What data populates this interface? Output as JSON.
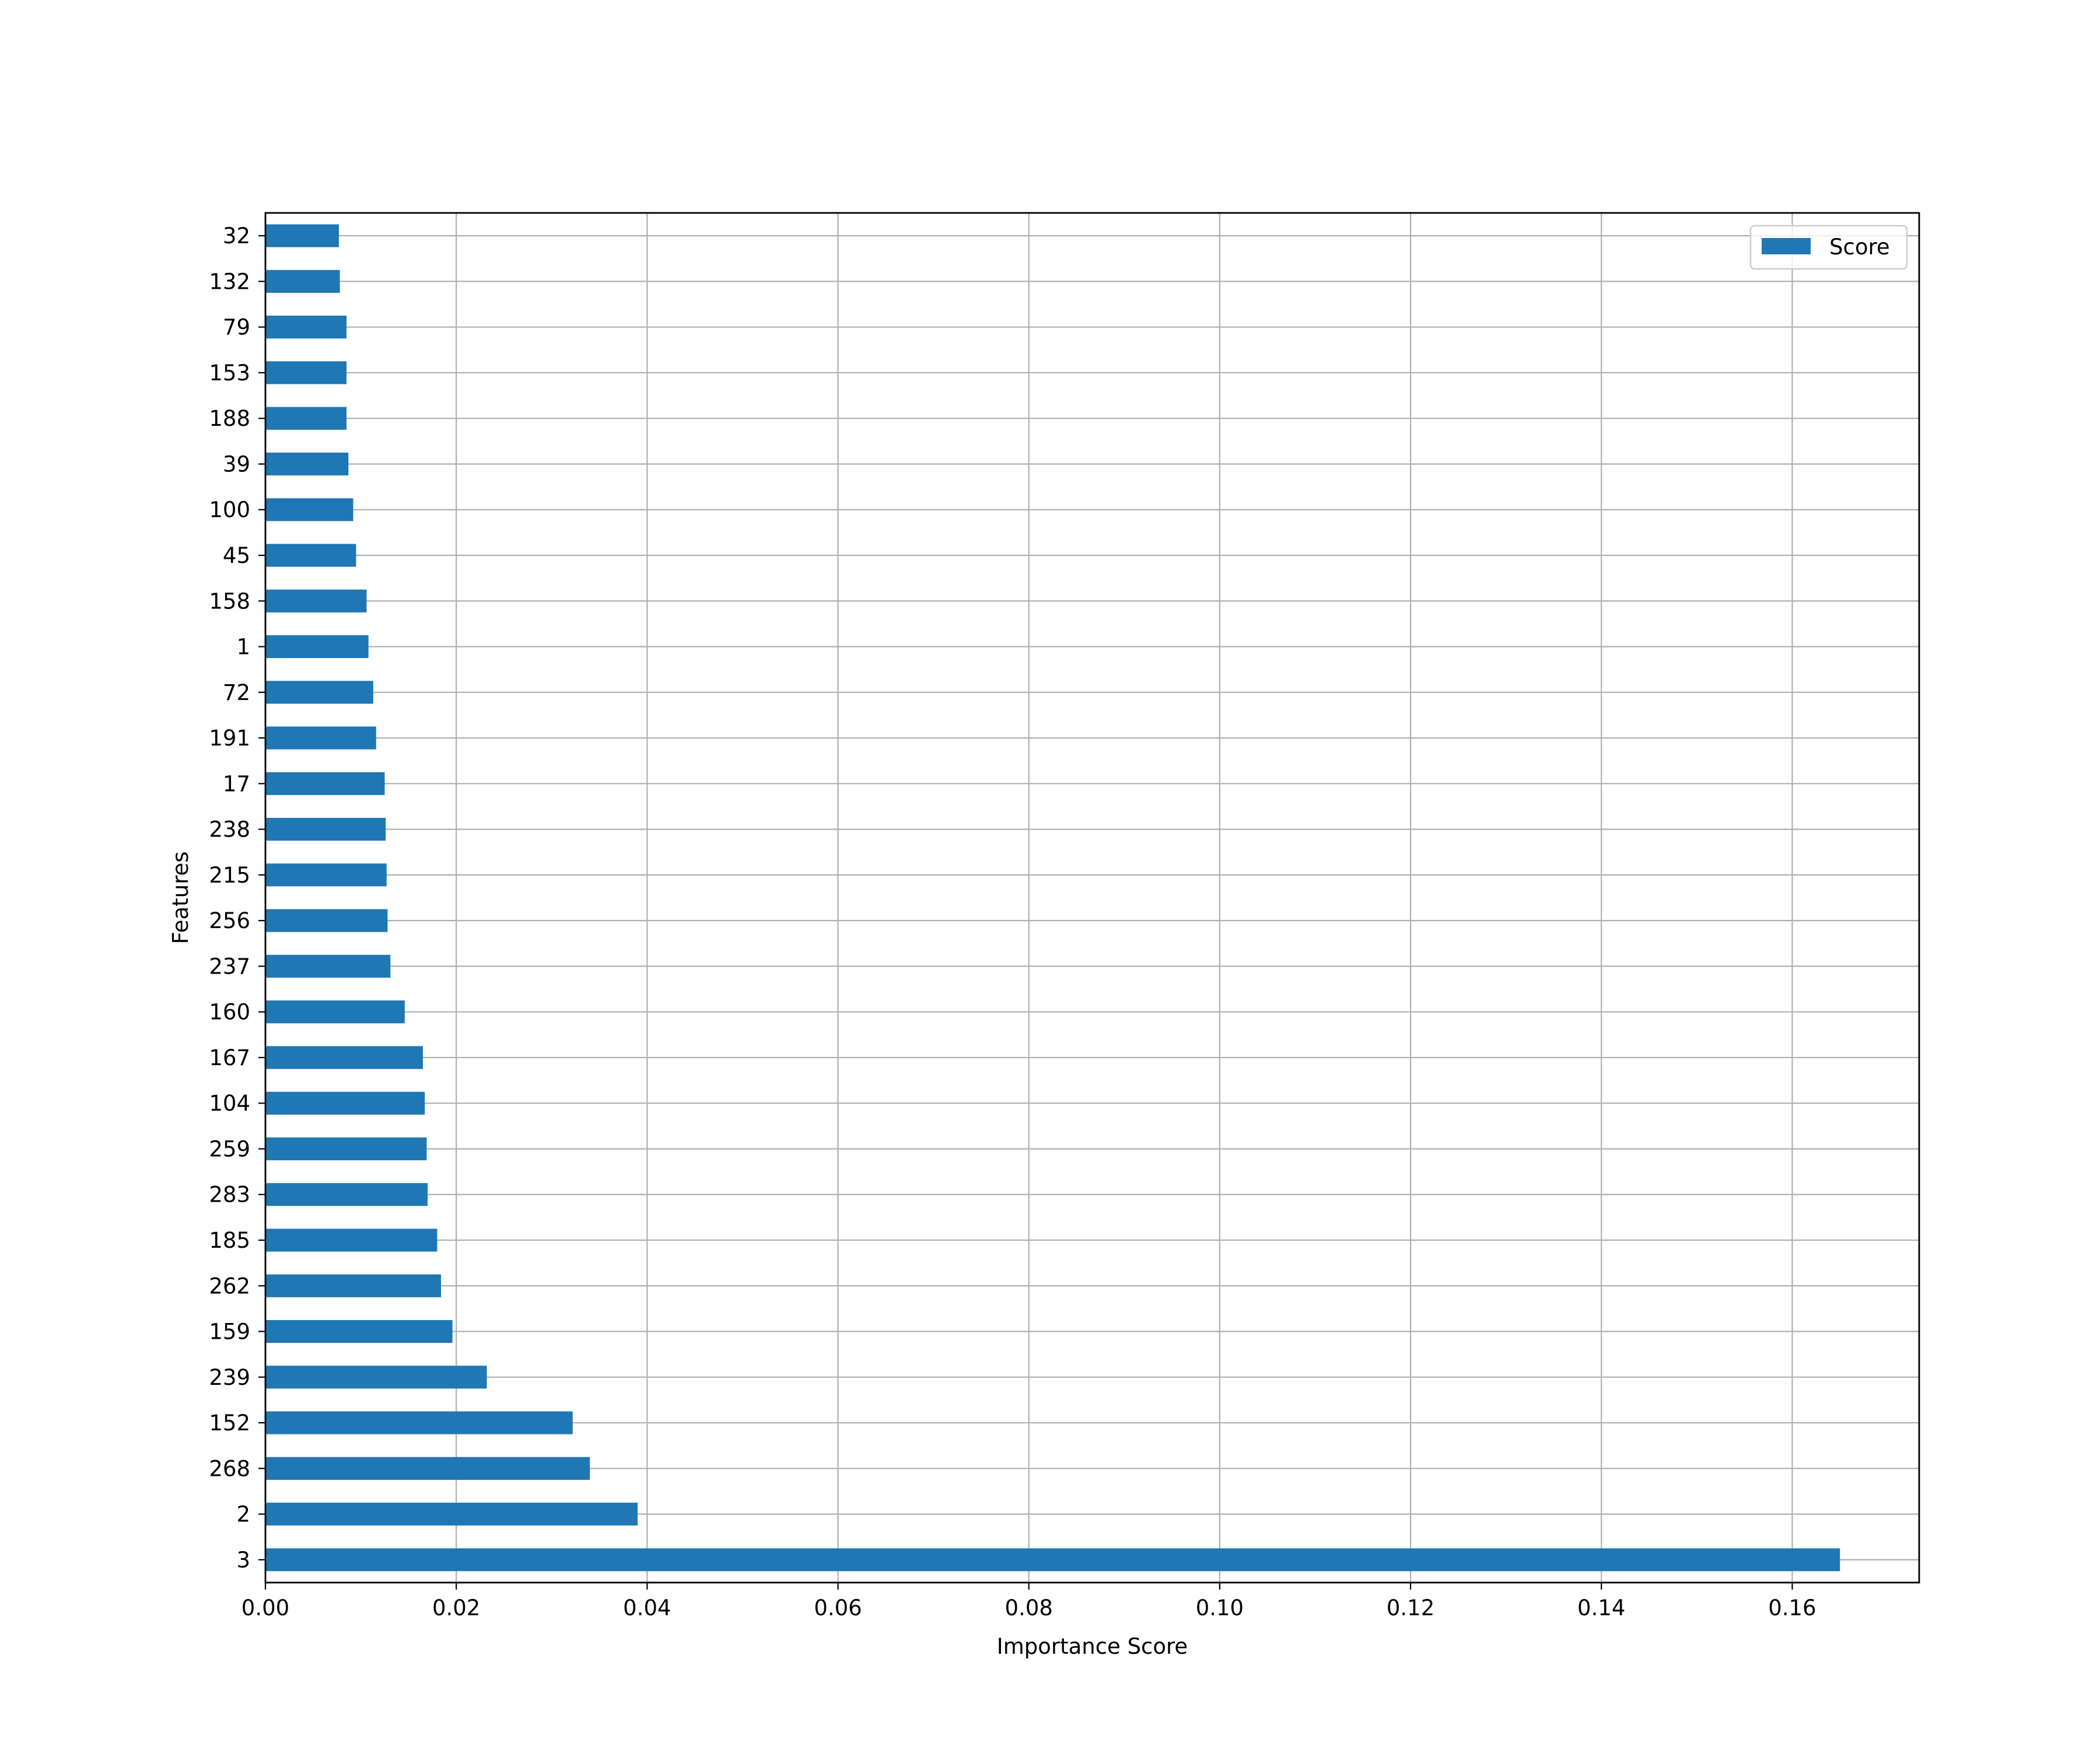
{
  "chart_data": {
    "type": "bar",
    "orientation": "horizontal",
    "categories": [
      "3",
      "2",
      "268",
      "152",
      "239",
      "159",
      "262",
      "185",
      "283",
      "259",
      "104",
      "167",
      "160",
      "237",
      "256",
      "215",
      "238",
      "17",
      "191",
      "72",
      "1",
      "158",
      "45",
      "100",
      "39",
      "188",
      "153",
      "79",
      "132",
      "32"
    ],
    "series": [
      {
        "name": "Score",
        "color": "#1f77b4",
        "values": [
          0.165,
          0.039,
          0.034,
          0.0322,
          0.0232,
          0.0196,
          0.0184,
          0.018,
          0.017,
          0.0169,
          0.0167,
          0.0165,
          0.0146,
          0.0131,
          0.0128,
          0.0127,
          0.0126,
          0.0125,
          0.0116,
          0.0113,
          0.0108,
          0.0106,
          0.0095,
          0.0092,
          0.0087,
          0.0085,
          0.0085,
          0.0085,
          0.0078,
          0.0077
        ]
      }
    ],
    "xlabel": "Importance Score",
    "ylabel": "Features",
    "xlim": [
      0,
      0.1733
    ],
    "xticks": [
      0.0,
      0.02,
      0.04,
      0.06,
      0.08,
      0.1,
      0.12,
      0.14,
      0.16
    ],
    "xtick_labels": [
      "0.00",
      "0.02",
      "0.04",
      "0.06",
      "0.08",
      "0.10",
      "0.12",
      "0.14",
      "0.16"
    ],
    "grid": true,
    "legend": "top-right"
  }
}
